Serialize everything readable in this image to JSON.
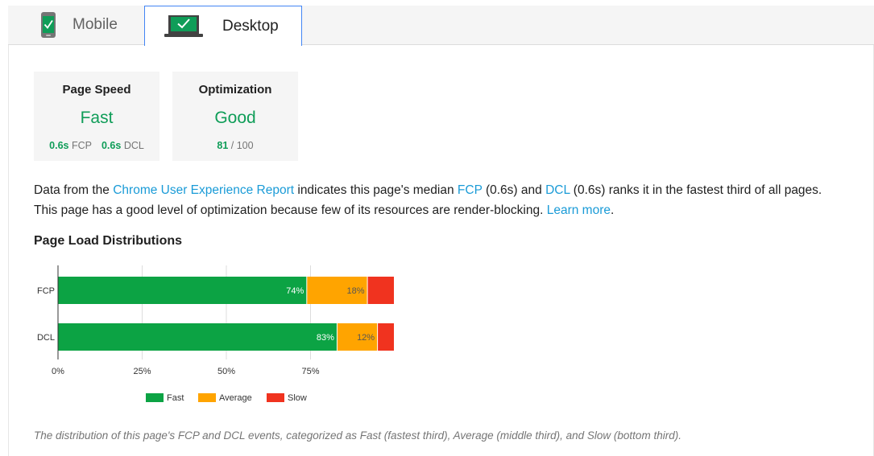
{
  "tabs": [
    {
      "label": "Mobile",
      "icon": "mobile-check-icon",
      "selected": false
    },
    {
      "label": "Desktop",
      "icon": "desktop-check-icon",
      "selected": true
    }
  ],
  "cards": {
    "speed": {
      "title": "Page Speed",
      "value": "Fast",
      "fcp_value": "0.6s",
      "fcp_label": "FCP",
      "dcl_value": "0.6s",
      "dcl_label": "DCL"
    },
    "optimization": {
      "title": "Optimization",
      "value": "Good",
      "score": "81",
      "score_suffix": "/ 100"
    }
  },
  "description": {
    "t1": "Data from the ",
    "link_report": "Chrome User Experience Report",
    "t2": " indicates this page's median ",
    "link_fcp": "FCP",
    "t3": " (0.6s) and ",
    "link_dcl": "DCL",
    "t4": " (0.6s) ranks it in the fastest third of all pages.",
    "t5": "This page has a good level of optimization because few of its resources are render-blocking. ",
    "link_learn": "Learn more",
    "t6": "."
  },
  "section_title": "Page Load Distributions",
  "chart_data": {
    "type": "bar",
    "orientation": "horizontal",
    "stacked": true,
    "categories": [
      "FCP",
      "DCL"
    ],
    "series": [
      {
        "name": "Fast",
        "values": [
          74,
          83
        ],
        "labels": [
          "74%",
          "83%"
        ],
        "color": "#0ca344"
      },
      {
        "name": "Average",
        "values": [
          18,
          12
        ],
        "labels": [
          "18%",
          "12%"
        ],
        "color": "#ffa400"
      },
      {
        "name": "Slow",
        "values": [
          8,
          5
        ],
        "labels": [
          "",
          ""
        ],
        "color": "#f0331f"
      }
    ],
    "x_ticks": [
      "0%",
      "25%",
      "50%",
      "75%"
    ],
    "xlim": [
      0,
      100
    ],
    "grid": true,
    "legend_position": "bottom"
  },
  "caption": "The distribution of this page's FCP and DCL events, categorized as Fast (fastest third), Average (middle third), and Slow (bottom third).",
  "colors": {
    "green": "#0f9d58",
    "link": "#1a9bd7",
    "tab_border": "#4285f4"
  }
}
